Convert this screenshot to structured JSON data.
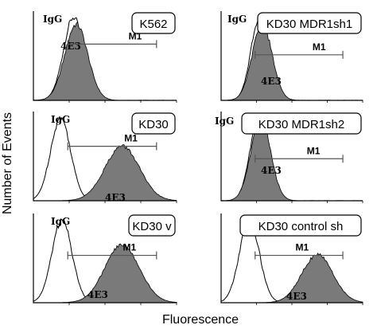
{
  "figure": {
    "y_axis_label": "Number of Events",
    "x_axis_label": "Fluorescence",
    "marker_label": "M1",
    "control_label": "IgG",
    "stain_label": "4E3"
  },
  "chart_data": [
    {
      "type": "area",
      "title": "K562",
      "series": [
        {
          "name": "IgG",
          "fill": "none",
          "center": 0.28,
          "width": 0.07,
          "peak": 1.0
        },
        {
          "name": "4E3",
          "fill": "#7a7a7a",
          "center": 0.3,
          "width": 0.08,
          "peak": 0.92
        }
      ],
      "xlabel": "",
      "ylabel": "",
      "gate": "M1",
      "grid": false
    },
    {
      "type": "area",
      "title": "KD30 MDR1sh1",
      "series": [
        {
          "name": "IgG",
          "fill": "none",
          "center": 0.27,
          "width": 0.06,
          "peak": 1.0
        },
        {
          "name": "4E3",
          "fill": "#7a7a7a",
          "center": 0.29,
          "width": 0.07,
          "peak": 0.92
        }
      ],
      "xlabel": "",
      "ylabel": "",
      "gate": "M1",
      "grid": false
    },
    {
      "type": "area",
      "title": "KD30",
      "series": [
        {
          "name": "IgG",
          "fill": "none",
          "center": 0.19,
          "width": 0.07,
          "peak": 1.0
        },
        {
          "name": "4E3",
          "fill": "#7a7a7a",
          "center": 0.62,
          "width": 0.12,
          "peak": 0.66
        }
      ],
      "xlabel": "",
      "ylabel": "",
      "gate": "M1",
      "grid": false
    },
    {
      "type": "area",
      "title": "KD30 MDR1sh2",
      "series": [
        {
          "name": "IgG",
          "fill": "none",
          "center": 0.26,
          "width": 0.06,
          "peak": 0.95
        },
        {
          "name": "4E3",
          "fill": "#7a7a7a",
          "center": 0.28,
          "width": 0.07,
          "peak": 0.98
        }
      ],
      "xlabel": "",
      "ylabel": "",
      "gate": "M1",
      "grid": false
    },
    {
      "type": "area",
      "title": "KD30 v",
      "series": [
        {
          "name": "IgG",
          "fill": "none",
          "center": 0.2,
          "width": 0.07,
          "peak": 1.0
        },
        {
          "name": "4E3",
          "fill": "#7a7a7a",
          "center": 0.62,
          "width": 0.12,
          "peak": 0.7
        }
      ],
      "xlabel": "",
      "ylabel": "",
      "gate": "M1",
      "grid": false
    },
    {
      "type": "area",
      "title": "KD30 control sh",
      "series": [
        {
          "name": "IgG",
          "fill": "none",
          "center": 0.2,
          "width": 0.07,
          "peak": 1.0
        },
        {
          "name": "4E3",
          "fill": "#7a7a7a",
          "center": 0.68,
          "width": 0.11,
          "peak": 0.58
        }
      ],
      "xlabel": "",
      "ylabel": "",
      "gate": "M1",
      "grid": false
    }
  ]
}
